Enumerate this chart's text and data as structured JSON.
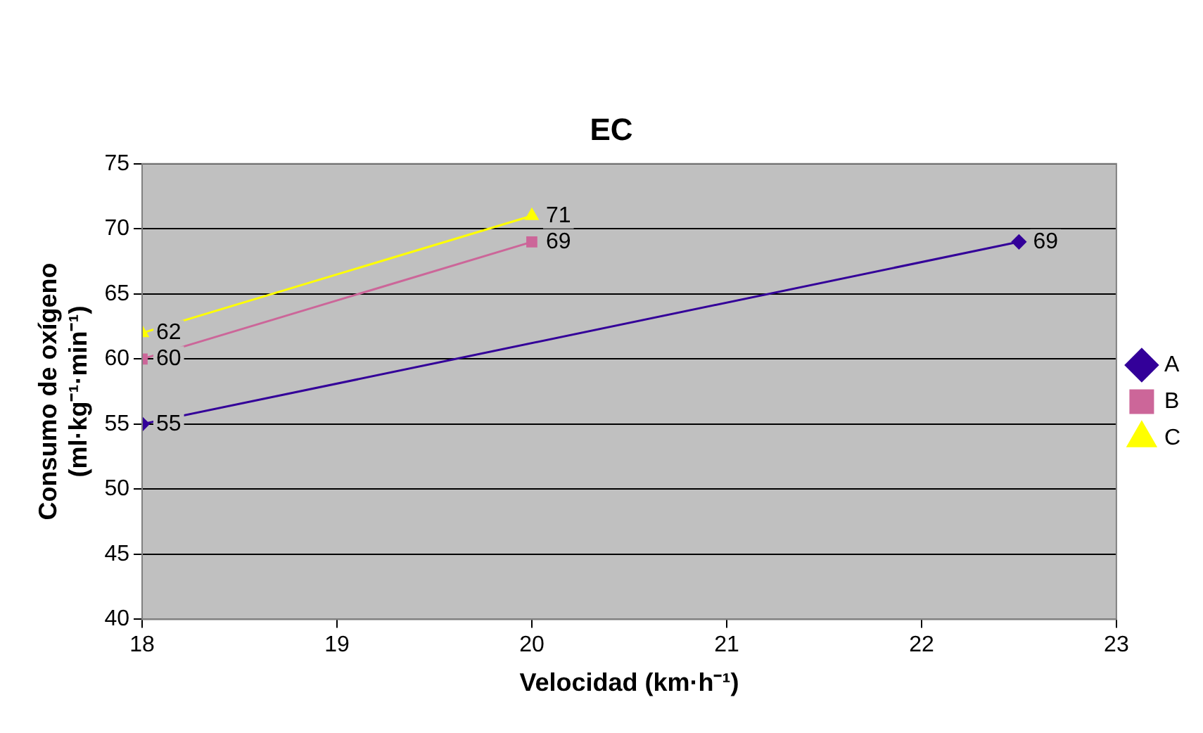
{
  "chart_data": {
    "type": "line",
    "title": "EC",
    "xlabel": "Velocidad (km·h⁻¹)",
    "ylabel": "Consumo de oxígeno\n(ml·kg⁻¹·min⁻¹)",
    "series": [
      {
        "name": "A",
        "color": "#330099",
        "marker": "diamond",
        "x": [
          18,
          22.5
        ],
        "values": [
          55,
          69
        ]
      },
      {
        "name": "B",
        "color": "#cc6699",
        "marker": "square",
        "x": [
          18,
          20
        ],
        "values": [
          60,
          69
        ]
      },
      {
        "name": "C",
        "color": "#ffff00",
        "marker": "triangle",
        "x": [
          18,
          20
        ],
        "values": [
          62,
          71
        ]
      }
    ],
    "xlim": [
      18,
      23
    ],
    "xticks": [
      18,
      19,
      20,
      21,
      22,
      23
    ],
    "ylim": [
      40,
      75
    ],
    "yticks": [
      40,
      45,
      50,
      55,
      60,
      65,
      70,
      75
    ],
    "grid": "y",
    "legend": "right",
    "data_labels": true,
    "line_style": "solid"
  }
}
